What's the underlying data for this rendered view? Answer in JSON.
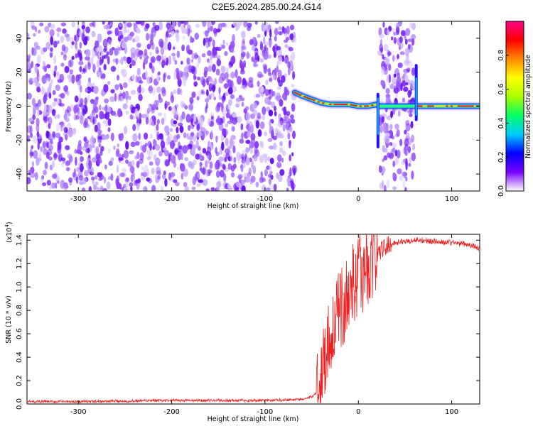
{
  "title": "C2E5.2024.285.00.24.G14",
  "chart_data": [
    {
      "type": "heatmap",
      "xlabel": "Height of straight line (km)",
      "ylabel": "Frequency (Hz)",
      "xlim": [
        -355,
        130
      ],
      "ylim": [
        -50,
        50
      ],
      "xticks": [
        -300,
        -200,
        -100,
        0,
        100
      ],
      "yticks": [
        -40,
        -20,
        0,
        20,
        40
      ],
      "colorbar": {
        "label": "Normalized spectral amplitude",
        "range": [
          0,
          1
        ],
        "ticks": [
          "0.0",
          "0.2",
          "0.4",
          "0.6",
          "0.8"
        ],
        "colors": [
          "#ffffff",
          "#7b00ff",
          "#0000ff",
          "#00ccff",
          "#00ff66",
          "#aaff00",
          "#ffff00",
          "#ff8800",
          "#ff0000",
          "#ff0088"
        ]
      },
      "noise_regions_km": [
        [
          -355,
          -68
        ],
        [
          22,
          60
        ]
      ],
      "signal_ridge": {
        "x": [
          -68,
          -60,
          -50,
          -40,
          -30,
          -20,
          -10,
          0,
          10,
          20,
          22,
          60,
          64,
          70,
          80,
          90,
          100,
          110,
          120,
          130
        ],
        "y": [
          8,
          6,
          4,
          2,
          1,
          1,
          1,
          0,
          0,
          1,
          0,
          0,
          0,
          0,
          0,
          0,
          0,
          0,
          0,
          0
        ]
      },
      "spikes": [
        {
          "x": 21,
          "y_range": [
            -24,
            7
          ]
        },
        {
          "x": 62,
          "y_range": [
            -8,
            24
          ]
        }
      ]
    },
    {
      "type": "line",
      "xlabel": "Height of straight line (km)",
      "ylabel": "SNR (10 * v/v)",
      "scale_label": "(x10",
      "scale_exp": "4",
      "xlim": [
        -355,
        130
      ],
      "ylim": [
        0,
        1.45
      ],
      "xticks": [
        -300,
        -200,
        -100,
        0,
        100
      ],
      "yticks": [
        "0.0",
        "0.2",
        "0.4",
        "0.6",
        "0.8",
        "1.0",
        "1.2",
        "1.4"
      ],
      "color": "#ee2020",
      "x": [
        -355,
        -300,
        -200,
        -100,
        -60,
        -50,
        -45,
        -40,
        -35,
        -30,
        -25,
        -20,
        -15,
        -10,
        -5,
        0,
        5,
        10,
        15,
        20,
        25,
        30,
        40,
        50,
        60,
        70,
        80,
        90,
        100,
        110,
        120,
        130
      ],
      "y": [
        0.02,
        0.02,
        0.03,
        0.03,
        0.04,
        0.06,
        0.1,
        0.25,
        0.45,
        0.6,
        0.7,
        0.8,
        0.85,
        0.95,
        1.05,
        1.1,
        1.12,
        1.18,
        1.22,
        1.28,
        1.32,
        1.35,
        1.38,
        1.39,
        1.4,
        1.4,
        1.39,
        1.38,
        1.38,
        1.37,
        1.36,
        1.33
      ]
    }
  ]
}
